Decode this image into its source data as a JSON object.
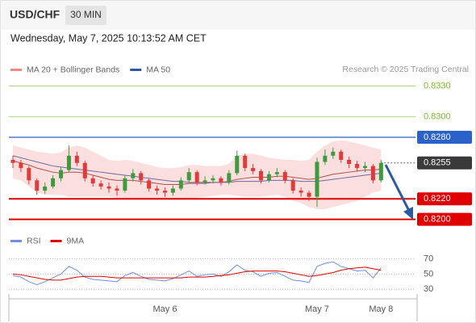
{
  "header": {
    "symbol": "USD/CHF",
    "timeframe": "30 MIN",
    "datetime": "Wednesday, May 7, 2025 10:13:52 AM CET"
  },
  "chart_data": [
    {
      "type": "candlestick",
      "source": "Research © 2025 Trading Central",
      "categories": [
        null,
        null,
        null,
        null,
        null,
        null,
        null,
        null,
        null,
        null,
        null,
        null,
        null,
        null,
        null,
        null,
        null,
        null,
        null,
        "May 6",
        null,
        null,
        null,
        null,
        null,
        null,
        null,
        null,
        null,
        null,
        null,
        null,
        null,
        null,
        null,
        null,
        null,
        null,
        "May 7",
        null,
        null,
        null,
        null,
        null,
        null,
        null,
        "May 8"
      ],
      "ylim": [
        0.8195,
        0.8339
      ],
      "up_color": "#3f9a3f",
      "down_color": "#e03a3a",
      "open": [
        0.8258,
        0.8255,
        0.825,
        0.8238,
        0.8228,
        0.8232,
        0.824,
        0.8248,
        0.8262,
        0.8255,
        0.824,
        0.8235,
        0.8232,
        0.823,
        0.8228,
        0.824,
        0.8245,
        0.8238,
        0.823,
        0.8228,
        0.8226,
        0.823,
        0.8238,
        0.8246,
        0.8236,
        0.8238,
        0.824,
        0.8236,
        0.8245,
        0.8262,
        0.825,
        0.8247,
        0.8238,
        0.8244,
        0.8246,
        0.8238,
        0.8228,
        0.8226,
        0.8222,
        0.8256,
        0.8262,
        0.8266,
        0.8258,
        0.8254,
        0.825,
        0.8252,
        0.8238
      ],
      "high": [
        0.8262,
        0.8258,
        0.8252,
        0.824,
        0.8236,
        0.8243,
        0.8251,
        0.8272,
        0.8266,
        0.8257,
        0.8243,
        0.8238,
        0.8236,
        0.8233,
        0.8243,
        0.8249,
        0.8247,
        0.824,
        0.8233,
        0.8231,
        0.8233,
        0.8241,
        0.825,
        0.8248,
        0.8242,
        0.8243,
        0.8242,
        0.8248,
        0.8267,
        0.8264,
        0.8254,
        0.8249,
        0.8247,
        0.825,
        0.8248,
        0.824,
        0.8231,
        0.8228,
        0.826,
        0.8268,
        0.827,
        0.8268,
        0.8261,
        0.8257,
        0.8256,
        0.8254,
        0.8258
      ],
      "low": [
        0.825,
        0.8246,
        0.8234,
        0.8224,
        0.8225,
        0.823,
        0.8237,
        0.8246,
        0.8252,
        0.8237,
        0.8232,
        0.8229,
        0.8226,
        0.8223,
        0.8226,
        0.8237,
        0.8234,
        0.8227,
        0.8224,
        0.8222,
        0.8223,
        0.8228,
        0.8236,
        0.8233,
        0.8234,
        0.8235,
        0.8233,
        0.8234,
        0.8243,
        0.8247,
        0.8244,
        0.8235,
        0.8236,
        0.8241,
        0.8235,
        0.8225,
        0.8222,
        0.8218,
        0.8212,
        0.8253,
        0.8259,
        0.8255,
        0.825,
        0.8247,
        0.8246,
        0.8235,
        0.8236
      ],
      "close": [
        0.8255,
        0.825,
        0.8238,
        0.8228,
        0.8232,
        0.824,
        0.8248,
        0.8262,
        0.8255,
        0.824,
        0.8235,
        0.8232,
        0.823,
        0.8228,
        0.824,
        0.8245,
        0.8238,
        0.823,
        0.8228,
        0.8226,
        0.823,
        0.8238,
        0.8246,
        0.8236,
        0.8238,
        0.824,
        0.8236,
        0.8245,
        0.8262,
        0.825,
        0.8247,
        0.8238,
        0.8244,
        0.8246,
        0.8238,
        0.8228,
        0.8226,
        0.8222,
        0.8256,
        0.8262,
        0.8266,
        0.8258,
        0.8254,
        0.825,
        0.8252,
        0.8238,
        0.8255
      ],
      "bands": {
        "color": "#f9d3d3",
        "upper": [
          0.8272,
          0.827,
          0.8268,
          0.8266,
          0.8265,
          0.8264,
          0.8265,
          0.827,
          0.8272,
          0.827,
          0.8266,
          0.8262,
          0.8258,
          0.8257,
          0.8258,
          0.8257,
          0.8255,
          0.8253,
          0.8251,
          0.825,
          0.825,
          0.8251,
          0.8253,
          0.8253,
          0.8252,
          0.8252,
          0.8252,
          0.8254,
          0.8262,
          0.8264,
          0.8264,
          0.8262,
          0.826,
          0.8259,
          0.8258,
          0.8258,
          0.8257,
          0.8258,
          0.8266,
          0.8272,
          0.8276,
          0.8277,
          0.8276,
          0.8274,
          0.8272,
          0.827,
          0.8268
        ],
        "lower": [
          0.824,
          0.8238,
          0.8232,
          0.8226,
          0.8224,
          0.8224,
          0.8224,
          0.8222,
          0.8222,
          0.8222,
          0.8222,
          0.8222,
          0.8222,
          0.8221,
          0.822,
          0.822,
          0.822,
          0.822,
          0.8219,
          0.8219,
          0.8219,
          0.8219,
          0.822,
          0.8221,
          0.8222,
          0.8223,
          0.8224,
          0.8224,
          0.8223,
          0.8222,
          0.8222,
          0.8222,
          0.8223,
          0.8224,
          0.8222,
          0.8218,
          0.8216,
          0.8212,
          0.821,
          0.821,
          0.8212,
          0.8214,
          0.8216,
          0.8218,
          0.8222,
          0.8226,
          0.8228
        ]
      },
      "series": [
        {
          "name": "MA 20 + Bollinger Bands",
          "color": "#f08a80",
          "line_color": "#b0504a",
          "values": [
            0.8257,
            0.8255,
            0.8253,
            0.825,
            0.8248,
            0.8246,
            0.8245,
            0.8246,
            0.8246,
            0.8245,
            0.8243,
            0.8241,
            0.8239,
            0.8238,
            0.8238,
            0.8238,
            0.8237,
            0.8236,
            0.8235,
            0.8234,
            0.8234,
            0.8234,
            0.8235,
            0.8235,
            0.8235,
            0.8236,
            0.8236,
            0.8237,
            0.8239,
            0.824,
            0.8241,
            0.8241,
            0.8241,
            0.8242,
            0.8242,
            0.8241,
            0.824,
            0.8239,
            0.824,
            0.8242,
            0.8244,
            0.8245,
            0.8246,
            0.8247,
            0.8248,
            0.8248,
            0.8249
          ]
        },
        {
          "name": "MA 50",
          "color": "#2f5a9e",
          "line_color": "#6a6aa8",
          "values": [
            0.8262,
            0.826,
            0.8258,
            0.8256,
            0.8254,
            0.8252,
            0.8251,
            0.825,
            0.8249,
            0.8248,
            0.8247,
            0.8246,
            0.8245,
            0.8244,
            0.8243,
            0.8242,
            0.8241,
            0.824,
            0.8239,
            0.8238,
            0.8237,
            0.8237,
            0.8236,
            0.8236,
            0.8236,
            0.8236,
            0.8236,
            0.8236,
            0.8237,
            0.8237,
            0.8237,
            0.8237,
            0.8238,
            0.8238,
            0.8238,
            0.8238,
            0.8237,
            0.8237,
            0.8237,
            0.8238,
            0.8239,
            0.824,
            0.8241,
            0.8242,
            0.8243,
            0.8244,
            0.8245
          ]
        }
      ],
      "levels": [
        {
          "value": 0.833,
          "label": "0.8330",
          "color": "#7cbd2c",
          "style": "plain"
        },
        {
          "value": 0.83,
          "label": "0.8300",
          "color": "#7cbd2c",
          "style": "plain"
        },
        {
          "value": 0.828,
          "label": "0.8280",
          "color": "#2a62c9",
          "style": "box"
        },
        {
          "value": 0.8255,
          "label": "0.8255",
          "color": "#3a3a3a",
          "style": "current"
        },
        {
          "value": 0.822,
          "label": "0.8220",
          "color": "#e00000",
          "style": "box"
        },
        {
          "value": 0.82,
          "label": "0.8200",
          "color": "#e00000",
          "style": "box"
        }
      ]
    },
    {
      "type": "line",
      "ylim": [
        25,
        80
      ],
      "yticks": [
        70,
        50,
        30
      ],
      "grid": true,
      "series": [
        {
          "name": "RSI",
          "color": "#6f8fe0",
          "values": [
            48,
            46,
            40,
            36,
            40,
            45,
            50,
            60,
            55,
            46,
            43,
            42,
            41,
            40,
            48,
            52,
            47,
            43,
            42,
            41,
            44,
            49,
            54,
            47,
            49,
            50,
            47,
            53,
            62,
            55,
            53,
            47,
            51,
            52,
            47,
            42,
            41,
            39,
            60,
            64,
            66,
            60,
            57,
            54,
            55,
            45,
            58
          ]
        },
        {
          "name": "9MA",
          "color": "#e00000",
          "values": [
            50,
            49,
            47,
            45,
            43,
            42,
            42,
            44,
            46,
            47,
            47,
            47,
            46,
            45,
            45,
            45,
            45,
            45,
            45,
            45,
            45,
            45,
            46,
            46,
            46,
            47,
            48,
            49,
            51,
            53,
            54,
            54,
            54,
            54,
            53,
            51,
            49,
            47,
            48,
            50,
            52,
            55,
            57,
            58,
            59,
            57,
            55
          ]
        }
      ]
    }
  ]
}
